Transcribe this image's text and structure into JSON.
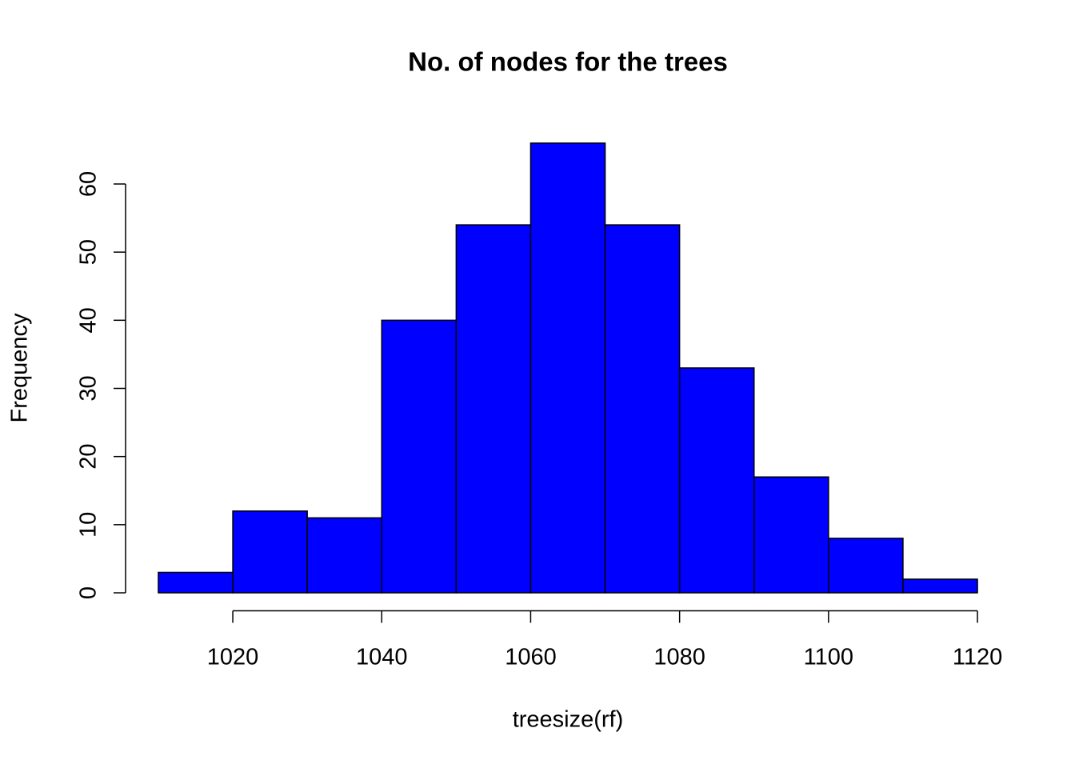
{
  "chart_data": {
    "type": "histogram",
    "title": "No. of nodes for the trees",
    "x_label": "treesize(rf)",
    "y_label": "Frequency",
    "bins": [
      1010,
      1020,
      1030,
      1040,
      1050,
      1060,
      1070,
      1080,
      1090,
      1100,
      1110,
      1120
    ],
    "values": [
      3,
      12,
      11,
      40,
      54,
      66,
      54,
      33,
      17,
      8,
      2
    ],
    "color": "#0000ff",
    "xlim": [
      1005.6,
      1124.4
    ],
    "xticks": [
      1020,
      1040,
      1060,
      1080,
      1100,
      1120
    ],
    "ylim": [
      -2.64,
      68.64
    ],
    "yticks": [
      0,
      10,
      20,
      30,
      40,
      50,
      60
    ]
  }
}
